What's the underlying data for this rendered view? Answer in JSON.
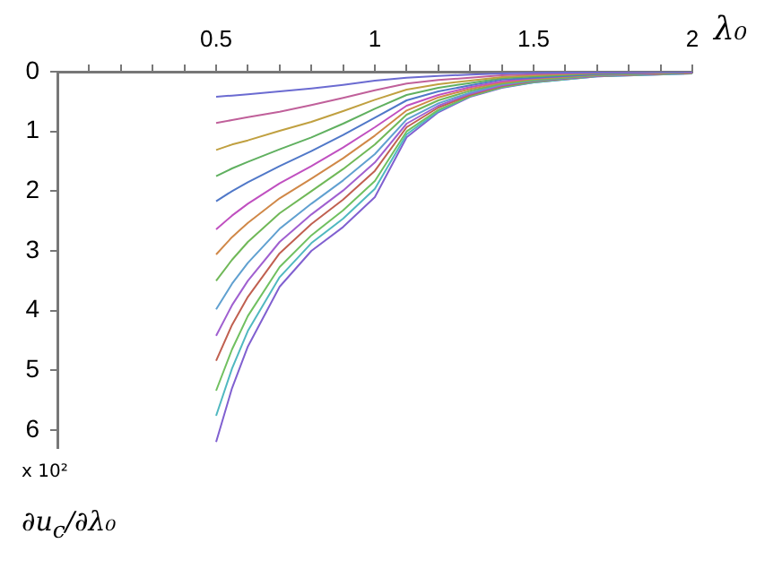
{
  "chart_data": {
    "type": "line",
    "xlabel": "λ₀",
    "ylabel": "∂u$_{c}$/∂λ₀",
    "annotations": [
      "x 10²"
    ],
    "x": [
      0.5,
      0.55,
      0.6,
      0.7,
      0.8,
      0.9,
      1.0,
      1.1,
      1.2,
      1.3,
      1.4,
      1.5,
      1.7,
      2.0
    ],
    "series": [
      {
        "color": "#6b6bd1",
        "values": [
          0.42,
          0.4,
          0.38,
          0.33,
          0.28,
          0.22,
          0.15,
          0.1,
          0.07,
          0.05,
          0.03,
          0.02,
          0.01,
          0
        ]
      },
      {
        "color": "#c0609a",
        "values": [
          0.86,
          0.81,
          0.76,
          0.67,
          0.56,
          0.44,
          0.31,
          0.2,
          0.14,
          0.1,
          0.06,
          0.04,
          0.02,
          0
        ]
      },
      {
        "color": "#c0a040",
        "values": [
          1.31,
          1.22,
          1.15,
          0.99,
          0.84,
          0.66,
          0.47,
          0.3,
          0.21,
          0.15,
          0.09,
          0.06,
          0.02,
          0
        ]
      },
      {
        "color": "#60b060",
        "values": [
          1.75,
          1.62,
          1.51,
          1.3,
          1.1,
          0.87,
          0.62,
          0.39,
          0.27,
          0.19,
          0.11,
          0.08,
          0.03,
          0
        ]
      },
      {
        "color": "#5078c8",
        "values": [
          2.17,
          2.0,
          1.85,
          1.58,
          1.33,
          1.06,
          0.77,
          0.48,
          0.33,
          0.23,
          0.13,
          0.1,
          0.04,
          0
        ]
      },
      {
        "color": "#c050c0",
        "values": [
          2.64,
          2.41,
          2.21,
          1.87,
          1.58,
          1.27,
          0.93,
          0.57,
          0.39,
          0.26,
          0.16,
          0.11,
          0.04,
          0.01
        ]
      },
      {
        "color": "#d08848",
        "values": [
          3.06,
          2.77,
          2.53,
          2.12,
          1.79,
          1.45,
          1.07,
          0.65,
          0.43,
          0.29,
          0.18,
          0.12,
          0.05,
          0.01
        ]
      },
      {
        "color": "#70b858",
        "values": [
          3.5,
          3.15,
          2.85,
          2.37,
          2.0,
          1.63,
          1.22,
          0.72,
          0.48,
          0.32,
          0.2,
          0.14,
          0.06,
          0.01
        ]
      },
      {
        "color": "#60a0d0",
        "values": [
          3.98,
          3.55,
          3.2,
          2.63,
          2.21,
          1.82,
          1.38,
          0.8,
          0.53,
          0.35,
          0.21,
          0.15,
          0.06,
          0.01
        ]
      },
      {
        "color": "#a060d0",
        "values": [
          4.42,
          3.91,
          3.5,
          2.85,
          2.39,
          1.99,
          1.52,
          0.87,
          0.57,
          0.37,
          0.23,
          0.15,
          0.07,
          0.01
        ]
      },
      {
        "color": "#c06050",
        "values": [
          4.84,
          4.24,
          3.77,
          3.04,
          2.55,
          2.14,
          1.66,
          0.93,
          0.6,
          0.39,
          0.24,
          0.16,
          0.07,
          0.02
        ]
      },
      {
        "color": "#70c060",
        "values": [
          5.34,
          4.65,
          4.09,
          3.27,
          2.74,
          2.32,
          1.83,
          1.0,
          0.64,
          0.41,
          0.26,
          0.17,
          0.07,
          0.02
        ]
      },
      {
        "color": "#50b8c0",
        "values": [
          5.76,
          4.97,
          4.34,
          3.44,
          2.87,
          2.46,
          1.96,
          1.05,
          0.66,
          0.41,
          0.26,
          0.18,
          0.08,
          0.03
        ]
      },
      {
        "color": "#8060d0",
        "values": [
          6.2,
          5.3,
          4.6,
          3.6,
          3.0,
          2.6,
          2.1,
          1.1,
          0.68,
          0.42,
          0.27,
          0.18,
          0.08,
          0.03
        ]
      }
    ],
    "xlim": [
      0,
      2
    ],
    "ylim": [
      6.3,
      0
    ],
    "xticks": [
      {
        "value": 0.1,
        "label": null
      },
      {
        "value": 0.2,
        "label": null
      },
      {
        "value": 0.3,
        "label": null
      },
      {
        "value": 0.4,
        "label": null
      },
      0.5,
      {
        "value": 0.6,
        "label": null
      },
      {
        "value": 0.7,
        "label": null
      },
      {
        "value": 0.8,
        "label": null
      },
      {
        "value": 0.9,
        "label": null
      },
      1,
      {
        "value": 1.1,
        "label": null
      },
      {
        "value": 1.2,
        "label": null
      },
      {
        "value": 1.3,
        "label": null
      },
      {
        "value": 1.4,
        "label": null
      },
      1.5,
      {
        "value": 1.6,
        "label": null
      },
      {
        "value": 1.7,
        "label": null
      },
      {
        "value": 1.8,
        "label": null
      },
      {
        "value": 1.9,
        "label": null
      },
      2
    ],
    "yticks": [
      0,
      1,
      2,
      3,
      4,
      5,
      6
    ],
    "grid": false,
    "legend": false,
    "marker": "none",
    "line_style": "solid"
  }
}
